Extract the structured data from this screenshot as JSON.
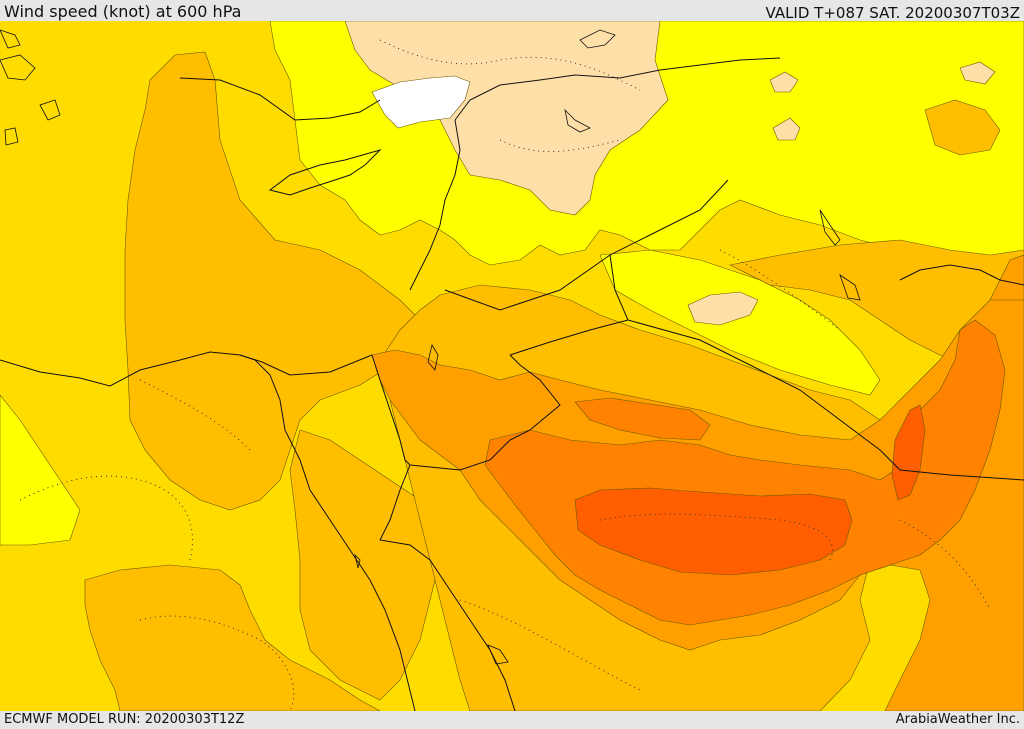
{
  "header": {
    "title": "Wind speed (knot) at 600 hPa",
    "valid_time": "VALID T+087 SAT. 20200307T03Z"
  },
  "footer": {
    "model_run": "ECMWF MODEL RUN: 20200303T12Z",
    "credit": "ArabiaWeather Inc."
  },
  "map": {
    "legend_colors": {
      "band_lowest": "#ffffff",
      "band_1": "#ffdfa8",
      "band_2": "#ffff00",
      "band_3": "#ffdc00",
      "band_4": "#ffbe00",
      "band_5": "#ffa000",
      "band_6": "#ff8200",
      "band_7": "#ff5f00"
    }
  }
}
